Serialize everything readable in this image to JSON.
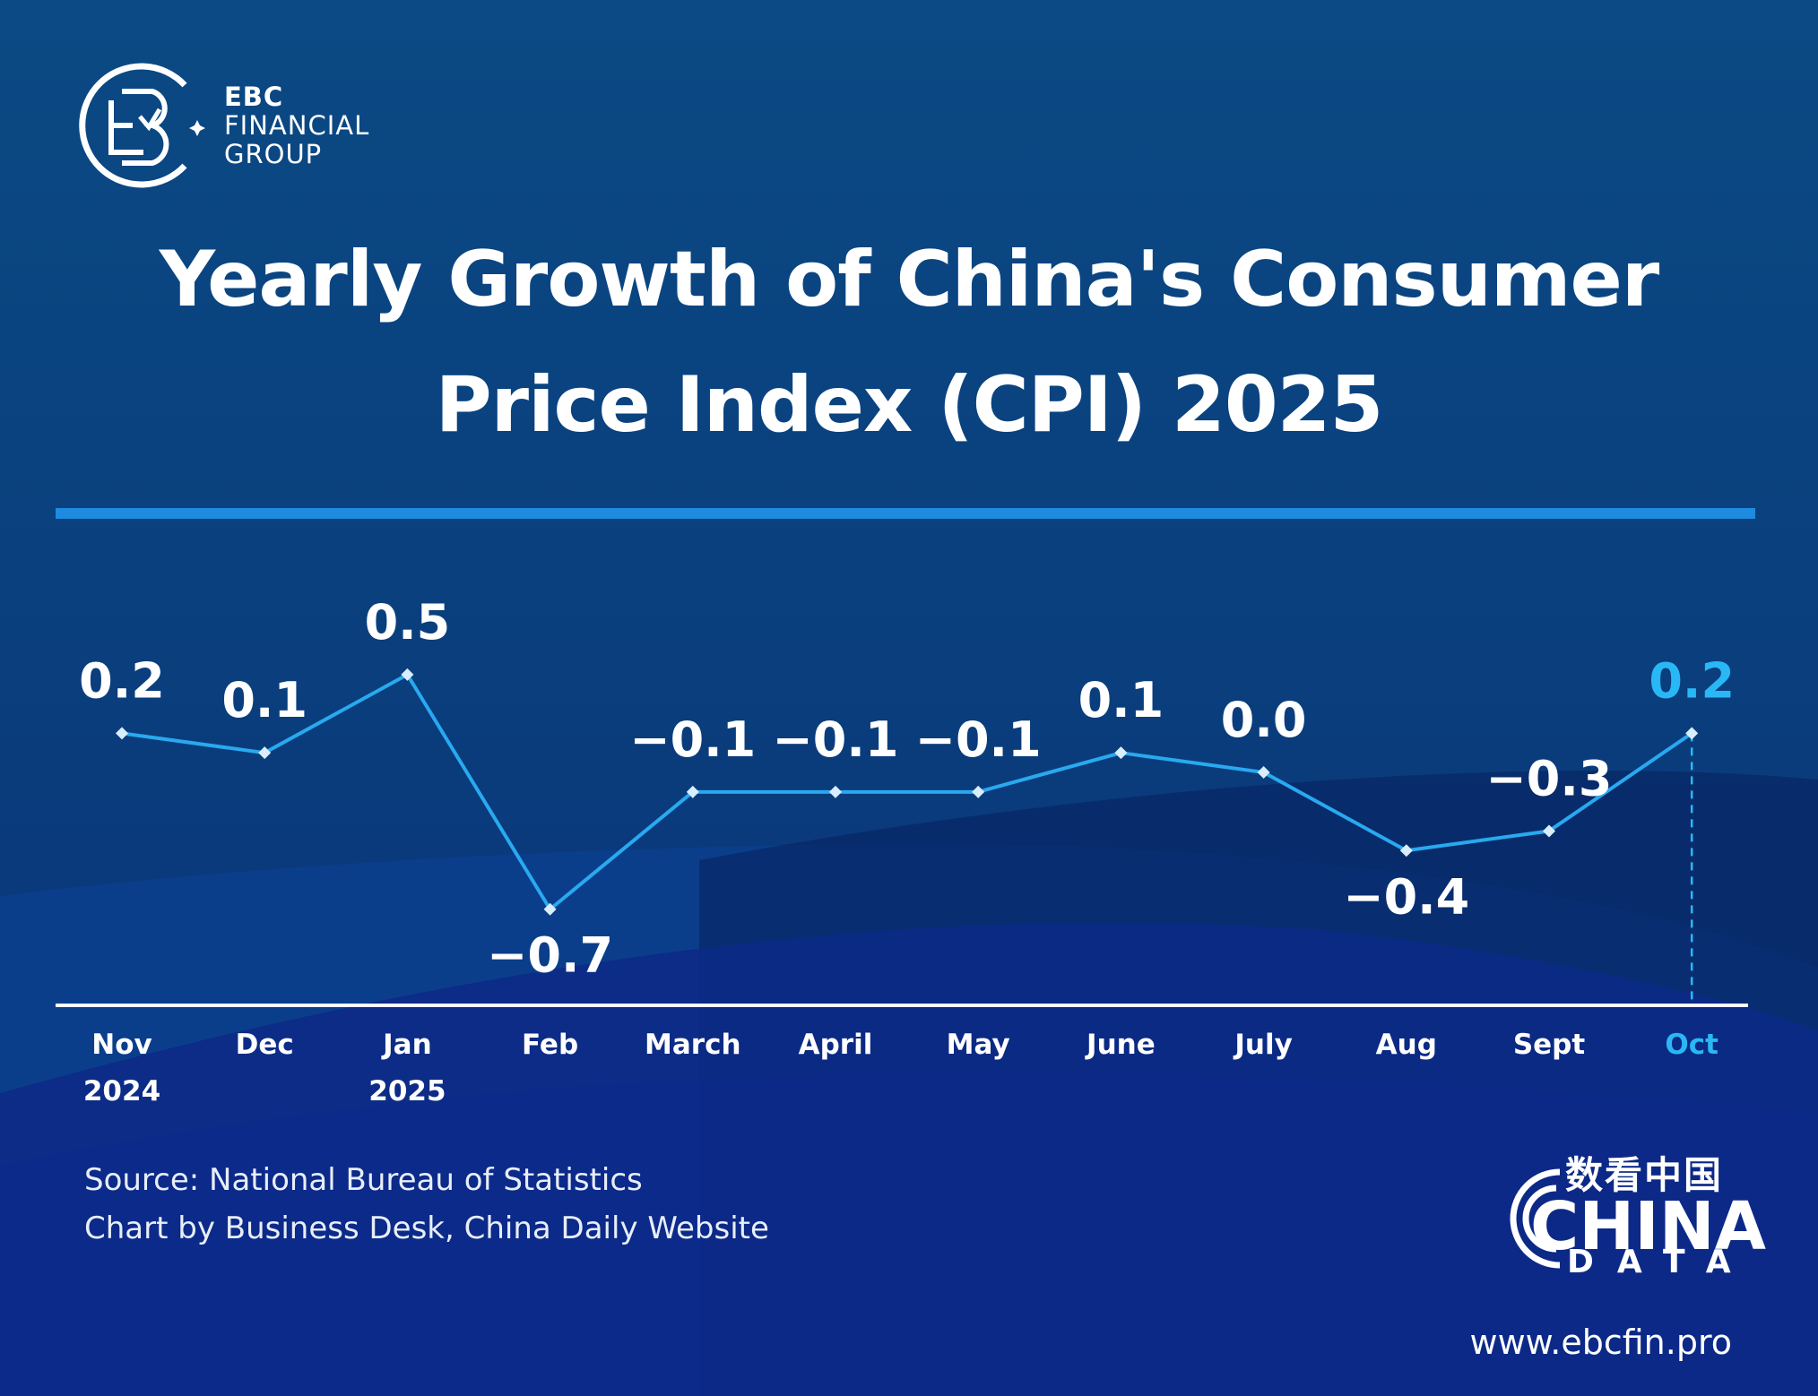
{
  "brand": {
    "line1": "EBC",
    "line2": "FINANCIAL",
    "line3": "GROUP",
    "logo_icon": "ebc-logo-icon"
  },
  "title": {
    "line1": "Yearly Growth of China's Consumer",
    "line2": "Price Index (CPI) 2025"
  },
  "chart_data": {
    "type": "line",
    "title": "Yearly Growth of China's Consumer Price Index (CPI) 2025",
    "categories": [
      "Nov",
      "Dec",
      "Jan",
      "Feb",
      "March",
      "April",
      "May",
      "June",
      "July",
      "Aug",
      "Sept",
      "Oct"
    ],
    "year_labels": [
      "2024",
      "",
      "2025",
      "",
      "",
      "",
      "",
      "",
      "",
      "",
      "",
      ""
    ],
    "values": [
      0.2,
      0.1,
      0.5,
      -0.7,
      -0.1,
      -0.1,
      -0.1,
      0.1,
      0.0,
      -0.4,
      -0.3,
      0.2
    ],
    "value_labels": [
      "0.2",
      "0.1",
      "0.5",
      "-0.7",
      "-0.1",
      "-0.1",
      "-0.1",
      "0.1",
      "0.0",
      "-0.4",
      "-0.3",
      "0.2"
    ],
    "label_positions": [
      "above",
      "above",
      "above",
      "below",
      "above",
      "above",
      "above",
      "above",
      "above",
      "below",
      "above",
      "above"
    ],
    "highlight_index": 11,
    "xlabel": "",
    "ylabel": "",
    "ylim": [
      -1.0,
      0.8
    ],
    "grid": false,
    "legend": "none"
  },
  "colors": {
    "line": "#29a9ef",
    "highlight": "#29b8f5",
    "text": "#ffffff",
    "rule": "#1f8be0"
  },
  "footer": {
    "source_line1": "Source: National Bureau of Statistics",
    "source_line2": "Chart by Business Desk, China Daily Website",
    "china_data_cn": "数看中国",
    "china_data_main": "CHINA",
    "china_data_sub": "DATA",
    "url": "www.ebcfin.pro"
  }
}
